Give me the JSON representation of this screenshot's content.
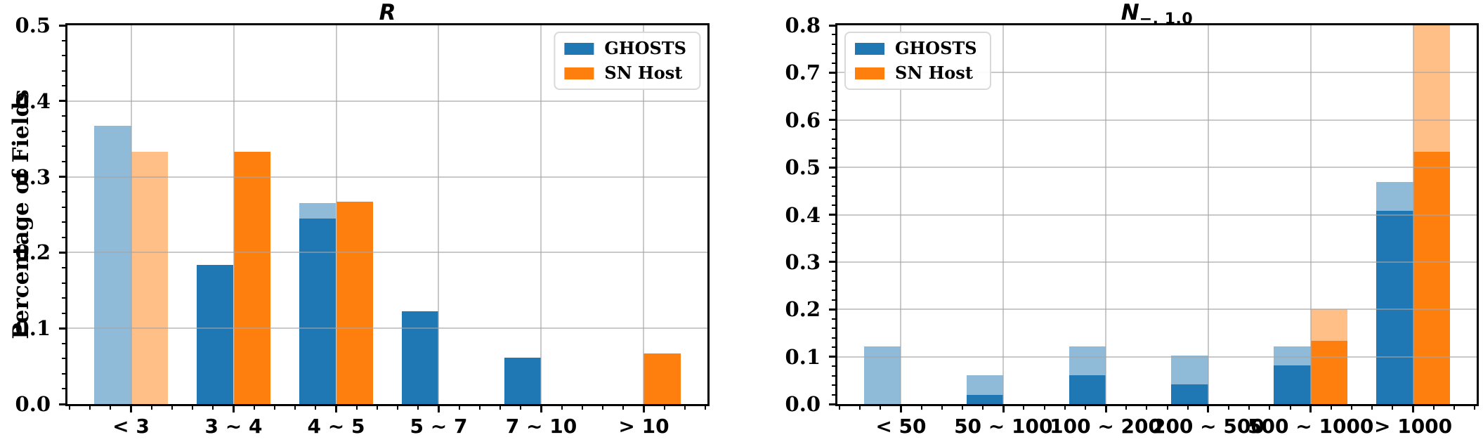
{
  "figure": {
    "background": "#ffffff"
  },
  "colors": {
    "ghosts": "#1f77b4",
    "sn_host": "#ff7f0e",
    "ghosts_faded": "#8fbbd9",
    "sn_host_faded": "#ffbf87",
    "grid": "#c8c8c8",
    "axis": "#000000"
  },
  "ylabel": "Percentage of Fields",
  "legend": {
    "items": [
      {
        "label": "GHOSTS",
        "color_key": "ghosts"
      },
      {
        "label": "SN Host",
        "color_key": "sn_host"
      }
    ]
  },
  "chart_data": [
    {
      "type": "bar",
      "title": "R",
      "title_main": "R",
      "title_sub": "",
      "ylabel": "Percentage of Fields",
      "categories": [
        "< 3",
        "3 ~ 4",
        "4 ~ 5",
        "5 ~ 7",
        "7 ~ 10",
        "> 10"
      ],
      "ylim": [
        0,
        0.5
      ],
      "ytick_step": 0.1,
      "ytick_labels": [
        "0.0",
        "0.1",
        "0.2",
        "0.3",
        "0.4",
        "0.5"
      ],
      "grid": true,
      "legend_position": "top-right",
      "series": [
        {
          "name": "GHOSTS (faded)",
          "group": "ghosts",
          "layer": "faded",
          "color_key": "ghosts_faded",
          "values": [
            0.367,
            0.184,
            0.265,
            0.122,
            0.061,
            0
          ]
        },
        {
          "name": "SN Host (faded)",
          "group": "sn_host",
          "layer": "faded",
          "color_key": "sn_host_faded",
          "values": [
            0.333,
            0.333,
            0.267,
            0,
            0,
            0.067
          ]
        },
        {
          "name": "GHOSTS",
          "group": "ghosts",
          "layer": "solid",
          "color_key": "ghosts",
          "values": [
            0,
            0.184,
            0.245,
            0.122,
            0.061,
            0
          ]
        },
        {
          "name": "SN Host",
          "group": "sn_host",
          "layer": "solid",
          "color_key": "sn_host",
          "values": [
            0,
            0.333,
            0.267,
            0,
            0,
            0.067
          ]
        }
      ]
    },
    {
      "type": "bar",
      "title": "N_{-,1.0}",
      "title_main": "N",
      "title_sub": "−, 1.0",
      "ylabel": "",
      "categories": [
        "< 50",
        "50 ~ 100",
        "100 ~ 200",
        "200 ~ 500",
        "500 ~ 1000",
        "> 1000"
      ],
      "ylim": [
        0,
        0.8
      ],
      "ytick_step": 0.1,
      "ytick_labels": [
        "0.0",
        "0.1",
        "0.2",
        "0.3",
        "0.4",
        "0.5",
        "0.6",
        "0.7",
        "0.8"
      ],
      "grid": true,
      "legend_position": "top-left",
      "series": [
        {
          "name": "GHOSTS (faded)",
          "group": "ghosts",
          "layer": "faded",
          "color_key": "ghosts_faded",
          "values": [
            0.122,
            0.061,
            0.122,
            0.102,
            0.122,
            0.469
          ]
        },
        {
          "name": "SN Host (faded)",
          "group": "sn_host",
          "layer": "faded",
          "color_key": "sn_host_faded",
          "values": [
            0,
            0,
            0,
            0,
            0.2,
            0.8
          ]
        },
        {
          "name": "GHOSTS",
          "group": "ghosts",
          "layer": "solid",
          "color_key": "ghosts",
          "values": [
            0,
            0.02,
            0.061,
            0.041,
            0.082,
            0.408
          ]
        },
        {
          "name": "SN Host",
          "group": "sn_host",
          "layer": "solid",
          "color_key": "sn_host",
          "values": [
            0,
            0,
            0,
            0,
            0.133,
            0.533
          ]
        }
      ]
    }
  ]
}
